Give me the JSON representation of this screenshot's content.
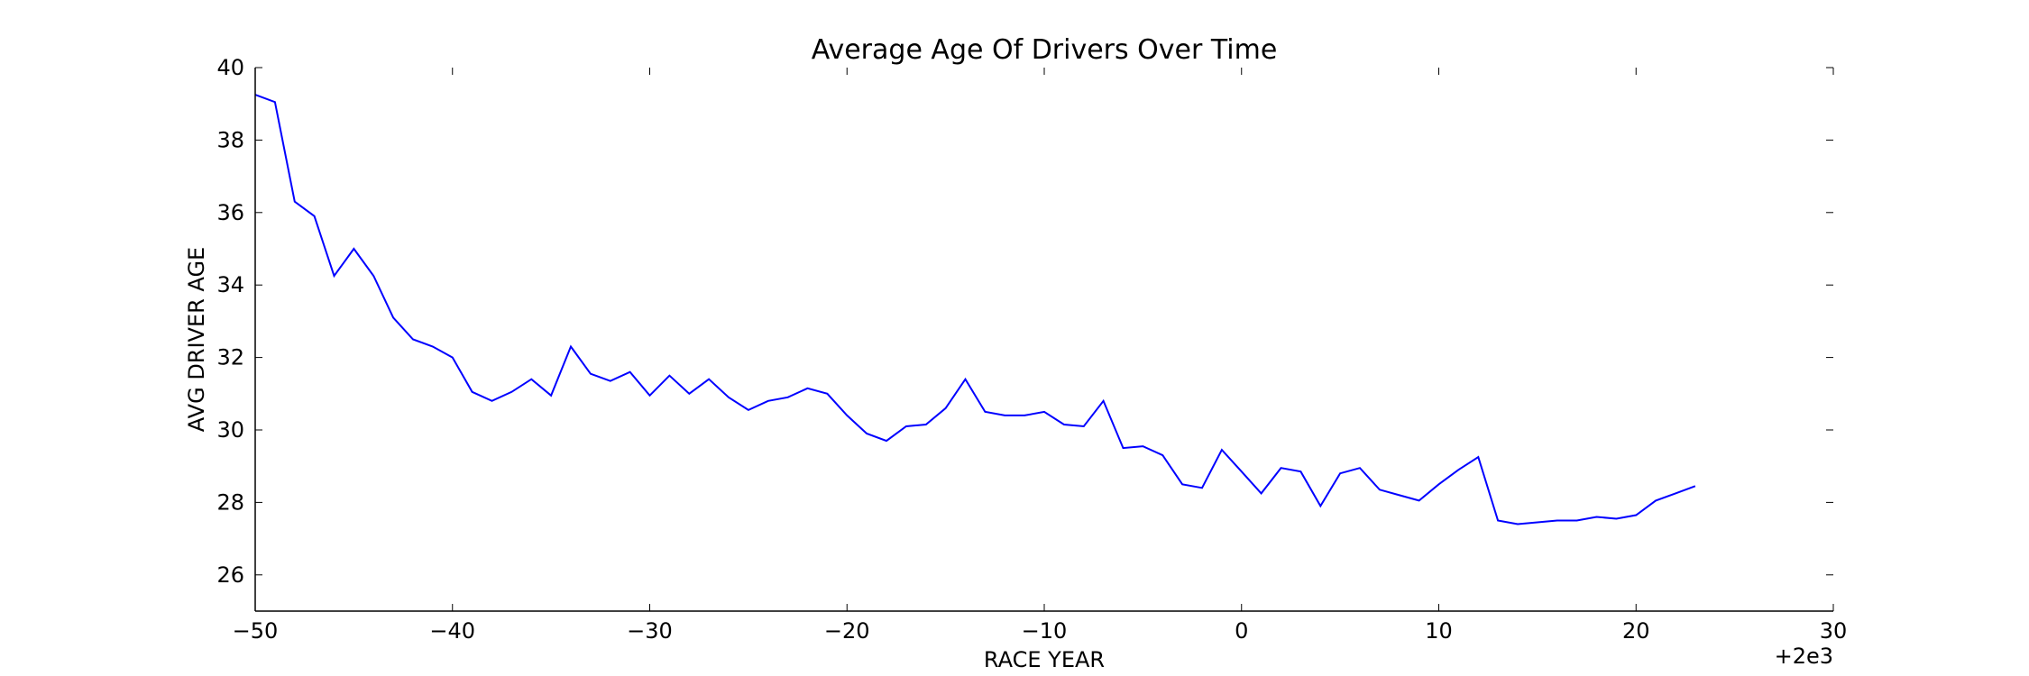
{
  "chart_data": {
    "type": "line",
    "title": "Average Age Of Drivers Over Time",
    "xlabel": "RACE YEAR",
    "ylabel": "AVG DRIVER AGE",
    "x_offset_label": "+2e3",
    "xlim": [
      -50,
      30
    ],
    "ylim": [
      25,
      40
    ],
    "xticks": [
      -50,
      -40,
      -30,
      -20,
      -10,
      0,
      10,
      20,
      30
    ],
    "xtick_labels": [
      "−50",
      "−40",
      "−30",
      "−20",
      "−10",
      "0",
      "10",
      "20",
      "30"
    ],
    "yticks": [
      26,
      28,
      30,
      32,
      34,
      36,
      38,
      40
    ],
    "ytick_labels": [
      "26",
      "28",
      "30",
      "32",
      "34",
      "36",
      "38",
      "40"
    ],
    "grid": false,
    "line_color": "#0000ff",
    "series": [
      {
        "x": [
          -50,
          -49,
          -48,
          -47,
          -46,
          -45,
          -44,
          -43,
          -42,
          -41,
          -40,
          -39,
          -38,
          -37,
          -36,
          -35,
          -34,
          -33,
          -32,
          -31,
          -30,
          -29,
          -28,
          -27,
          -26,
          -25,
          -24,
          -23,
          -22,
          -21,
          -20,
          -19,
          -18,
          -17,
          -16,
          -15,
          -14,
          -13,
          -12,
          -11,
          -10,
          -9,
          -8,
          -7,
          -6,
          -5,
          -4,
          -3,
          -2,
          -1,
          0,
          1,
          2,
          3,
          4,
          5,
          6,
          7,
          8,
          9,
          10,
          11,
          12,
          13,
          14,
          15,
          16,
          17,
          18,
          19,
          20,
          21,
          22,
          23
        ],
        "y": [
          39.25,
          39.05,
          36.3,
          35.9,
          34.25,
          35.0,
          34.25,
          33.1,
          32.5,
          32.3,
          32.0,
          31.05,
          30.8,
          31.05,
          31.4,
          30.95,
          32.3,
          31.55,
          31.35,
          31.6,
          30.95,
          31.5,
          31.0,
          31.4,
          30.9,
          30.55,
          30.8,
          30.9,
          31.15,
          31.0,
          30.4,
          29.9,
          29.7,
          30.1,
          30.15,
          30.6,
          31.4,
          30.5,
          30.4,
          30.4,
          30.5,
          30.15,
          30.1,
          30.8,
          29.5,
          29.55,
          29.3,
          28.5,
          28.4,
          29.45,
          28.85,
          28.25,
          28.95,
          28.85,
          27.9,
          28.8,
          28.95,
          28.35,
          28.2,
          28.05,
          28.5,
          28.9,
          29.25,
          27.5,
          27.4,
          27.45,
          27.5,
          27.5,
          27.6,
          27.55,
          27.65,
          28.05,
          28.25,
          28.45
        ]
      }
    ]
  }
}
